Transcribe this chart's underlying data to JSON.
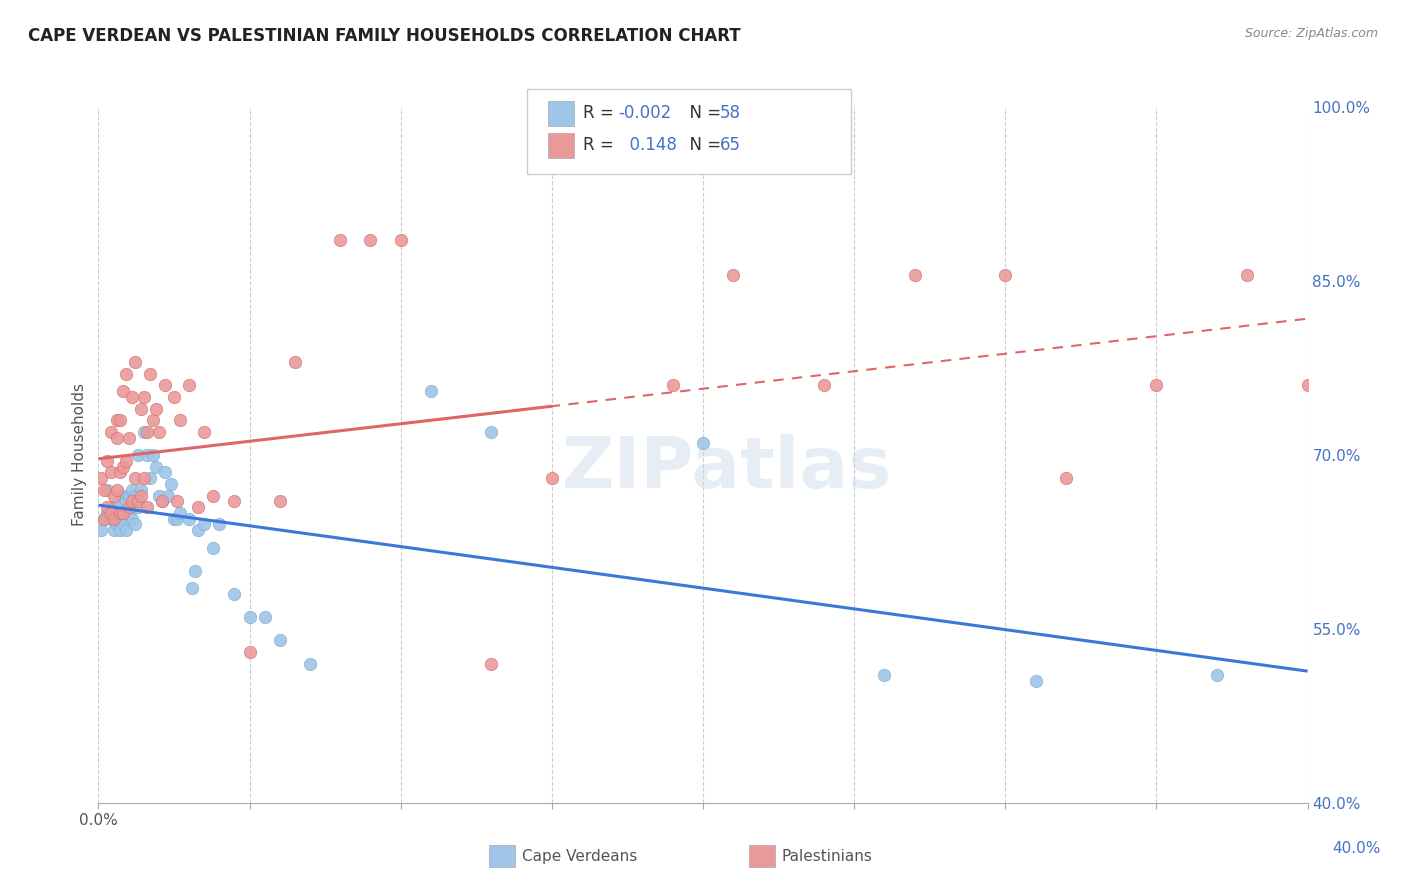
{
  "title": "CAPE VERDEAN VS PALESTINIAN FAMILY HOUSEHOLDS CORRELATION CHART",
  "source": "Source: ZipAtlas.com",
  "ylabel": "Family Households",
  "xlim": [
    0.0,
    0.4
  ],
  "ylim": [
    0.4,
    1.0
  ],
  "xticks": [
    0.0,
    0.05,
    0.1,
    0.15,
    0.2,
    0.25,
    0.3,
    0.35,
    0.4
  ],
  "yticks_right": [
    0.4,
    0.55,
    0.7,
    0.85,
    1.0
  ],
  "ytick_right_labels": [
    "40.0%",
    "55.0%",
    "70.0%",
    "85.0%",
    "100.0%"
  ],
  "blue_color": "#9fc5e8",
  "pink_color": "#ea9999",
  "blue_line_color": "#3c78d8",
  "pink_line_color": "#e06666",
  "background_color": "#ffffff",
  "grid_color": "#cccccc",
  "title_color": "#222222",
  "legend_text_color": "#4472c4",
  "watermark": "ZIPatlas",
  "blue_x": [
    0.001,
    0.002,
    0.003,
    0.003,
    0.004,
    0.005,
    0.005,
    0.005,
    0.006,
    0.006,
    0.007,
    0.007,
    0.007,
    0.008,
    0.008,
    0.008,
    0.009,
    0.009,
    0.01,
    0.01,
    0.011,
    0.011,
    0.012,
    0.012,
    0.013,
    0.013,
    0.014,
    0.015,
    0.016,
    0.017,
    0.018,
    0.019,
    0.02,
    0.021,
    0.022,
    0.023,
    0.024,
    0.025,
    0.026,
    0.027,
    0.03,
    0.031,
    0.032,
    0.033,
    0.035,
    0.038,
    0.04,
    0.045,
    0.05,
    0.055,
    0.06,
    0.07,
    0.11,
    0.13,
    0.2,
    0.26,
    0.31,
    0.37
  ],
  "blue_y": [
    0.635,
    0.645,
    0.65,
    0.67,
    0.645,
    0.635,
    0.645,
    0.655,
    0.64,
    0.655,
    0.635,
    0.645,
    0.66,
    0.64,
    0.65,
    0.665,
    0.635,
    0.66,
    0.65,
    0.665,
    0.645,
    0.67,
    0.64,
    0.665,
    0.655,
    0.7,
    0.67,
    0.72,
    0.7,
    0.68,
    0.7,
    0.69,
    0.665,
    0.66,
    0.685,
    0.665,
    0.675,
    0.645,
    0.645,
    0.65,
    0.645,
    0.585,
    0.6,
    0.635,
    0.64,
    0.62,
    0.64,
    0.58,
    0.56,
    0.56,
    0.54,
    0.52,
    0.755,
    0.72,
    0.71,
    0.51,
    0.505,
    0.51
  ],
  "pink_x": [
    0.001,
    0.002,
    0.002,
    0.003,
    0.003,
    0.004,
    0.004,
    0.004,
    0.005,
    0.005,
    0.006,
    0.006,
    0.006,
    0.007,
    0.007,
    0.007,
    0.008,
    0.008,
    0.008,
    0.009,
    0.009,
    0.01,
    0.01,
    0.011,
    0.011,
    0.012,
    0.012,
    0.013,
    0.014,
    0.014,
    0.015,
    0.015,
    0.016,
    0.016,
    0.017,
    0.018,
    0.019,
    0.02,
    0.021,
    0.022,
    0.025,
    0.026,
    0.027,
    0.03,
    0.033,
    0.035,
    0.038,
    0.045,
    0.05,
    0.06,
    0.065,
    0.08,
    0.09,
    0.1,
    0.13,
    0.15,
    0.19,
    0.21,
    0.24,
    0.27,
    0.3,
    0.32,
    0.35,
    0.38,
    0.4
  ],
  "pink_y": [
    0.68,
    0.645,
    0.67,
    0.655,
    0.695,
    0.65,
    0.685,
    0.72,
    0.645,
    0.665,
    0.67,
    0.715,
    0.73,
    0.65,
    0.685,
    0.73,
    0.65,
    0.69,
    0.755,
    0.695,
    0.77,
    0.655,
    0.715,
    0.66,
    0.75,
    0.68,
    0.78,
    0.66,
    0.665,
    0.74,
    0.68,
    0.75,
    0.655,
    0.72,
    0.77,
    0.73,
    0.74,
    0.72,
    0.66,
    0.76,
    0.75,
    0.66,
    0.73,
    0.76,
    0.655,
    0.72,
    0.665,
    0.66,
    0.53,
    0.66,
    0.78,
    0.885,
    0.885,
    0.885,
    0.52,
    0.68,
    0.76,
    0.855,
    0.76,
    0.855,
    0.855,
    0.68,
    0.76,
    0.855,
    0.76
  ]
}
